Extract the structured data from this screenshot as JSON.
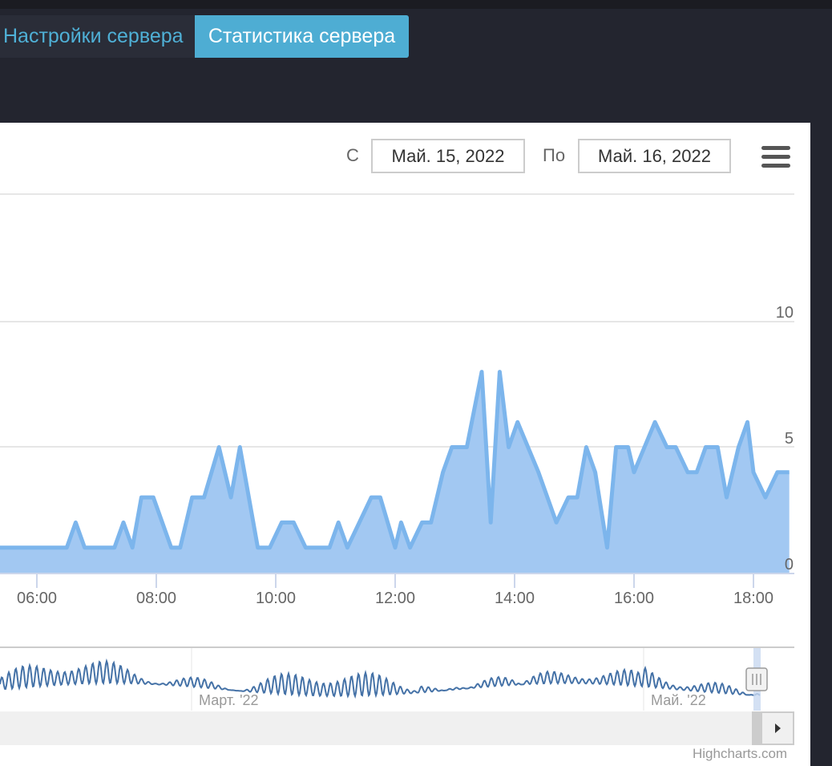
{
  "tabs": [
    {
      "label": "Настройки сервера",
      "active": false
    },
    {
      "label": "Статистика сервера",
      "active": true
    }
  ],
  "range": {
    "from_label": "С",
    "from_value": "Май. 15, 2022",
    "to_label": "По",
    "to_value": "Май. 16, 2022"
  },
  "menu_icon": "hamburger-menu-icon",
  "credits": "Highcharts.com",
  "colors": {
    "tab_active": "#4eadd3",
    "series_line": "#7cb5ec",
    "series_fill": "#a2c8f2",
    "navigator_line": "#4572a7"
  },
  "chart_data": {
    "type": "area",
    "x_unit": "hours (time of day)",
    "x": [
      5.0,
      5.25,
      5.5,
      5.75,
      6.0,
      6.25,
      6.5,
      6.65,
      6.8,
      7.0,
      7.3,
      7.45,
      7.6,
      7.75,
      7.95,
      8.25,
      8.4,
      8.6,
      8.8,
      9.05,
      9.25,
      9.4,
      9.7,
      9.9,
      10.1,
      10.3,
      10.5,
      10.9,
      11.05,
      11.2,
      11.6,
      11.75,
      12.0,
      12.1,
      12.25,
      12.45,
      12.6,
      12.8,
      12.95,
      13.2,
      13.45,
      13.6,
      13.75,
      13.9,
      14.05,
      14.4,
      14.7,
      14.9,
      15.05,
      15.2,
      15.35,
      15.55,
      15.7,
      15.9,
      16.0,
      16.35,
      16.55,
      16.7,
      16.9,
      17.05,
      17.2,
      17.4,
      17.55,
      17.75,
      17.9,
      18.0,
      18.2,
      18.4,
      18.6
    ],
    "y": [
      1,
      1,
      1,
      1,
      1,
      1,
      1,
      2,
      1,
      1,
      1,
      2,
      1,
      3,
      3,
      1,
      1,
      3,
      3,
      5,
      3,
      5,
      1,
      1,
      2,
      2,
      1,
      1,
      2,
      1,
      3,
      3,
      1,
      2,
      1,
      2,
      2,
      4,
      5,
      5,
      8,
      2,
      8,
      5,
      6,
      4,
      2,
      3,
      3,
      5,
      4,
      1,
      5,
      5,
      4,
      6,
      5,
      5,
      4,
      4,
      5,
      5,
      3,
      5,
      6,
      4,
      3,
      4,
      4
    ],
    "x_tick_labels": [
      "06:00",
      "08:00",
      "10:00",
      "12:00",
      "14:00",
      "16:00",
      "18:00"
    ],
    "y_tick_labels": [
      "0",
      "5",
      "10"
    ],
    "ylim": [
      0,
      15
    ],
    "grid": true,
    "navigator_labels": [
      "Март. '22",
      "Май. '22"
    ]
  }
}
